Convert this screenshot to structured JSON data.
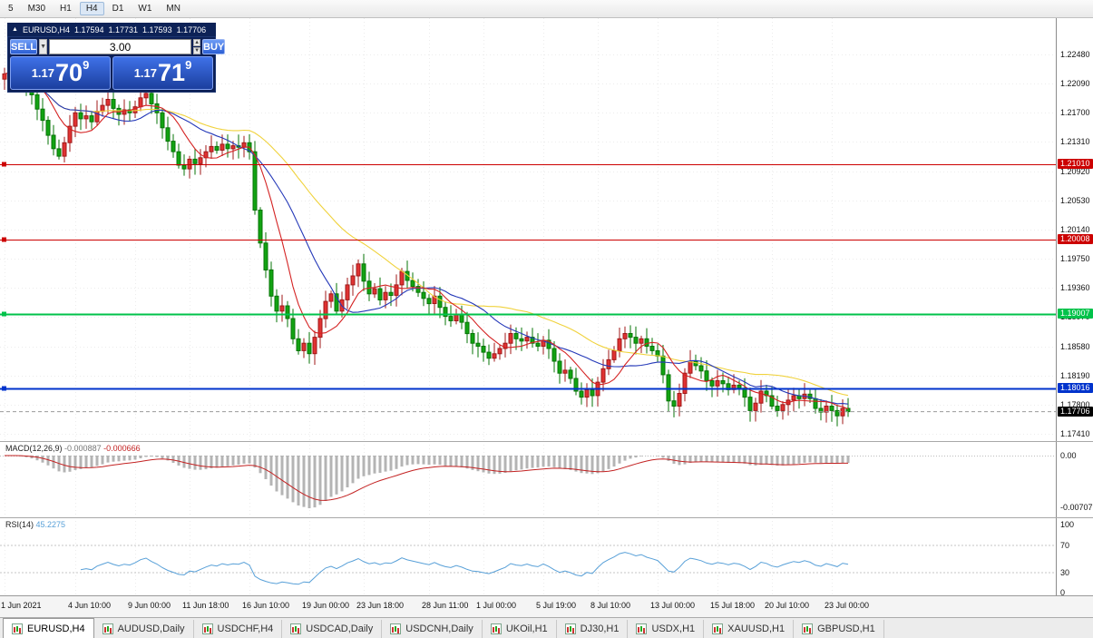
{
  "toolbar": {
    "periods": [
      "5",
      "M30",
      "H1",
      "H4",
      "D1",
      "W1",
      "MN"
    ],
    "active": "H4"
  },
  "chart": {
    "title": {
      "collapse_icon": "▲",
      "symbol": "EURUSD,H4",
      "open": "1.17594",
      "high": "1.17731",
      "low": "1.17593",
      "close": "1.17706"
    },
    "trade_panel": {
      "sell_label": "SELL",
      "buy_label": "BUY",
      "volume": "3.00",
      "sell_price": {
        "prefix": "1.17",
        "big": "70",
        "sup": "9"
      },
      "buy_price": {
        "prefix": "1.17",
        "big": "71",
        "sup": "9"
      }
    },
    "price_axis": [
      "1.22480",
      "1.22090",
      "1.21700",
      "1.21310",
      "1.20920",
      "1.20530",
      "1.20140",
      "1.19750",
      "1.19360",
      "1.18970",
      "1.18580",
      "1.18190",
      "1.17800",
      "1.17410"
    ],
    "levels": [
      {
        "price": 1.2101,
        "label": "1.21010",
        "color": "#cc0000",
        "width": 1
      },
      {
        "price": 1.20008,
        "label": "1.20008",
        "color": "#cc0000",
        "width": 1
      },
      {
        "price": 1.19007,
        "label": "1.19007",
        "color": "#00c24a",
        "width": 2
      },
      {
        "price": 1.18016,
        "label": "1.18016",
        "color": "#0033cc",
        "width": 2
      }
    ],
    "current_price": {
      "value": 1.17706,
      "label": "1.17706",
      "bg": "#000000"
    }
  },
  "macd": {
    "name": "MACD(12,26,9)",
    "value": "-0.000887",
    "signal": "-0.000666",
    "axis_zero": "0.00",
    "axis_min": "-0.00707",
    "params": [
      12,
      26,
      9
    ]
  },
  "rsi": {
    "name": "RSI(14)",
    "value": "45.2275",
    "period": 14,
    "axis": [
      100,
      70,
      30,
      0
    ],
    "levels": [
      70,
      30
    ]
  },
  "chart_data": {
    "type": "candlestick",
    "symbol": "EURUSD",
    "timeframe": "H4",
    "scale": {
      "top_price": 1.2248,
      "bottom_price": 1.1741
    },
    "first_open": 1.2215,
    "bull_color": "#e03232",
    "bear_color": "#12a312",
    "bull_stroke": "#a01818",
    "bear_stroke": "#077407",
    "closes": [
      1.2222,
      1.2226,
      1.2218,
      1.221,
      1.2202,
      1.2194,
      1.2175,
      1.216,
      1.214,
      1.2122,
      1.2112,
      1.213,
      1.2152,
      1.217,
      1.2162,
      1.2166,
      1.2158,
      1.2172,
      1.218,
      1.2188,
      1.2176,
      1.2168,
      1.2174,
      1.217,
      1.2178,
      1.219,
      1.2196,
      1.2182,
      1.217,
      1.215,
      1.2132,
      1.2118,
      1.21,
      1.2095,
      1.2108,
      1.2102,
      1.211,
      1.2118,
      1.2125,
      1.212,
      1.2128,
      1.2122,
      1.2126,
      1.2124,
      1.213,
      1.2118,
      1.204,
      1.1996,
      1.196,
      1.1925,
      1.1905,
      1.1912,
      1.1895,
      1.1868,
      1.1852,
      1.1862,
      1.1848,
      1.187,
      1.1895,
      1.1918,
      1.1928,
      1.1905,
      1.192,
      1.194,
      1.1952,
      1.1968,
      1.1945,
      1.1928,
      1.1935,
      1.192,
      1.193,
      1.1926,
      1.194,
      1.1958,
      1.1946,
      1.1938,
      1.193,
      1.1922,
      1.1915,
      1.1925,
      1.191,
      1.1898,
      1.1892,
      1.19,
      1.189,
      1.1875,
      1.1862,
      1.1858,
      1.185,
      1.1842,
      1.1848,
      1.1855,
      1.1862,
      1.1875,
      1.1868,
      1.1865,
      1.187,
      1.1862,
      1.1858,
      1.1866,
      1.1855,
      1.1838,
      1.1822,
      1.1826,
      1.1815,
      1.1798,
      1.179,
      1.18,
      1.1792,
      1.181,
      1.1828,
      1.184,
      1.1852,
      1.1868,
      1.1875,
      1.187,
      1.1862,
      1.1868,
      1.1858,
      1.1852,
      1.1845,
      1.182,
      1.1785,
      1.1778,
      1.1795,
      1.1822,
      1.1838,
      1.1832,
      1.1825,
      1.1812,
      1.1805,
      1.1812,
      1.1808,
      1.18,
      1.1806,
      1.1802,
      1.179,
      1.1772,
      1.1782,
      1.1798,
      1.1792,
      1.1778,
      1.1772,
      1.178,
      1.1786,
      1.1792,
      1.1788,
      1.1794,
      1.1788,
      1.1775,
      1.177,
      1.1778,
      1.1772,
      1.1765,
      1.1775,
      1.17706
    ],
    "time_labels": [
      {
        "i": 0,
        "label": "1 Jun 2021"
      },
      {
        "i": 13,
        "label": "4 Jun 10:00"
      },
      {
        "i": 24,
        "label": "9 Jun 00:00"
      },
      {
        "i": 34,
        "label": "11 Jun 18:00"
      },
      {
        "i": 45,
        "label": "16 Jun 10:00"
      },
      {
        "i": 56,
        "label": "19 Jun 00:00"
      },
      {
        "i": 66,
        "label": "23 Jun 18:00"
      },
      {
        "i": 78,
        "label": "28 Jun 11:00"
      },
      {
        "i": 88,
        "label": "1 Jul 00:00"
      },
      {
        "i": 99,
        "label": "5 Jul 19:00"
      },
      {
        "i": 109,
        "label": "8 Jul 10:00"
      },
      {
        "i": 120,
        "label": "13 Jul 00:00"
      },
      {
        "i": 131,
        "label": "15 Jul 18:00"
      },
      {
        "i": 141,
        "label": "20 Jul 10:00"
      },
      {
        "i": 152,
        "label": "23 Jul 00:00"
      }
    ],
    "moving_averages": [
      {
        "period": 34,
        "color": "#f0d23c"
      },
      {
        "period": 17,
        "color": "#2438b8"
      },
      {
        "period": 8,
        "color": "#d42222"
      }
    ]
  },
  "tabs": [
    {
      "label": "EURUSD,H4",
      "active": true
    },
    {
      "label": "AUDUSD,Daily"
    },
    {
      "label": "USDCHF,H4"
    },
    {
      "label": "USDCAD,Daily"
    },
    {
      "label": "USDCNH,Daily"
    },
    {
      "label": "UKOil,H1"
    },
    {
      "label": "DJ30,H1"
    },
    {
      "label": "USDX,H1"
    },
    {
      "label": "XAUUSD,H1"
    },
    {
      "label": "GBPUSD,H1"
    }
  ]
}
